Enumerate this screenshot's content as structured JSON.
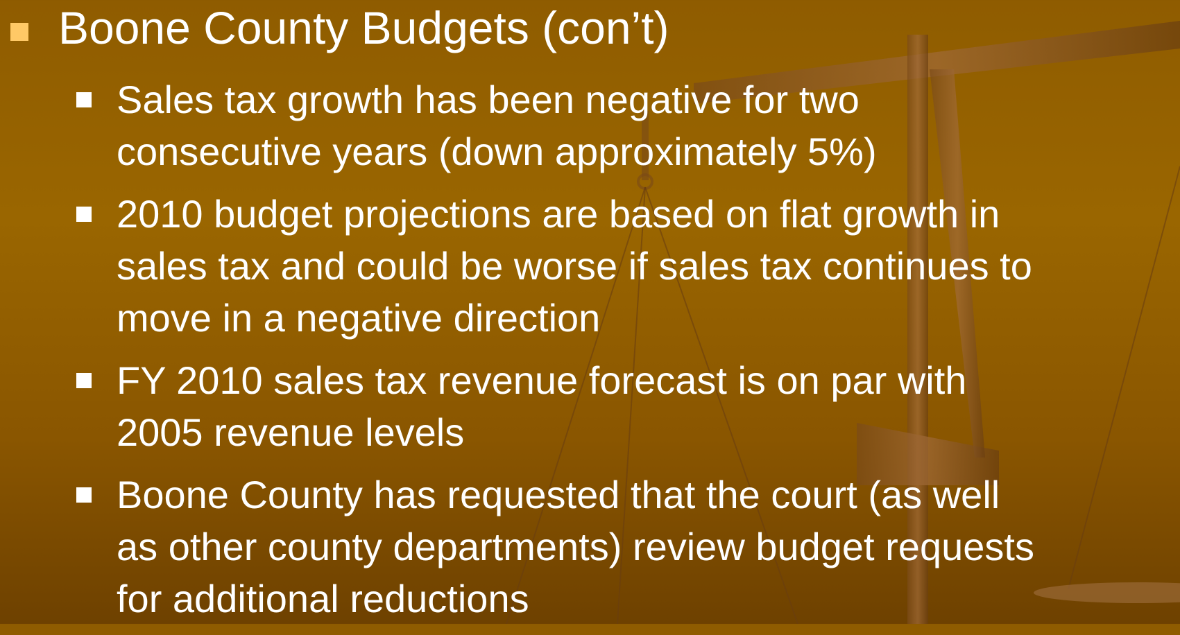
{
  "title": "Boone County Budgets (con’t)",
  "bullets": [
    {
      "lines": [
        "Sales tax growth has been negative for two",
        "consecutive years (down approximately 5%)"
      ]
    },
    {
      "lines": [
        "2010 budget projections are based on flat growth in",
        "sales tax and could be worse if sales tax continues to",
        "move in a negative direction"
      ]
    },
    {
      "lines": [
        "FY 2010 sales tax revenue forecast is on par with",
        "2005 revenue levels"
      ]
    },
    {
      "lines": [
        "Boone County has requested that the court (as well",
        "as other county departments) review budget requests",
        "for additional reductions"
      ]
    }
  ]
}
